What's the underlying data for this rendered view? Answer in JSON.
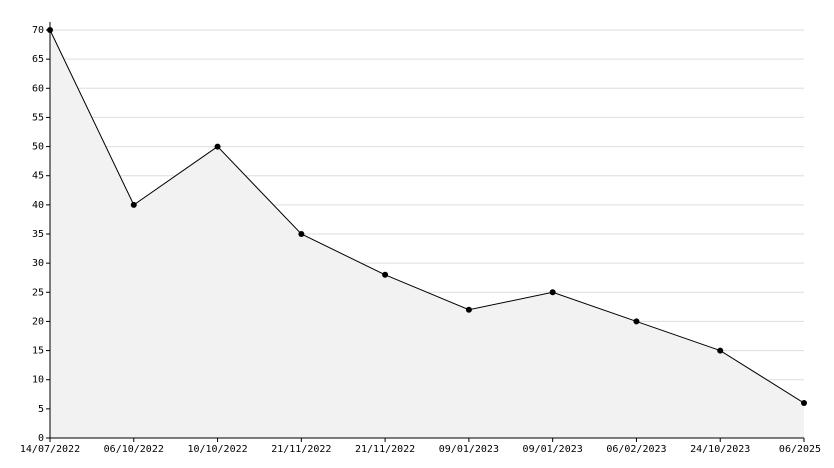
{
  "chart_data": {
    "type": "area",
    "categories": [
      "14/07/2022",
      "06/10/2022",
      "10/10/2022",
      "21/11/2022",
      "21/11/2022",
      "09/01/2023",
      "09/01/2023",
      "06/02/2023",
      "24/10/2023",
      "06/2025"
    ],
    "values": [
      70,
      40,
      50,
      35,
      28,
      22,
      25,
      20,
      15,
      6
    ],
    "color": "#000000",
    "fill": "#f2f2f2",
    "ylim": [
      0,
      70
    ],
    "yticks": [
      0,
      5,
      10,
      15,
      20,
      25,
      30,
      35,
      40,
      45,
      50,
      55,
      60,
      65,
      70
    ],
    "grid": true
  }
}
